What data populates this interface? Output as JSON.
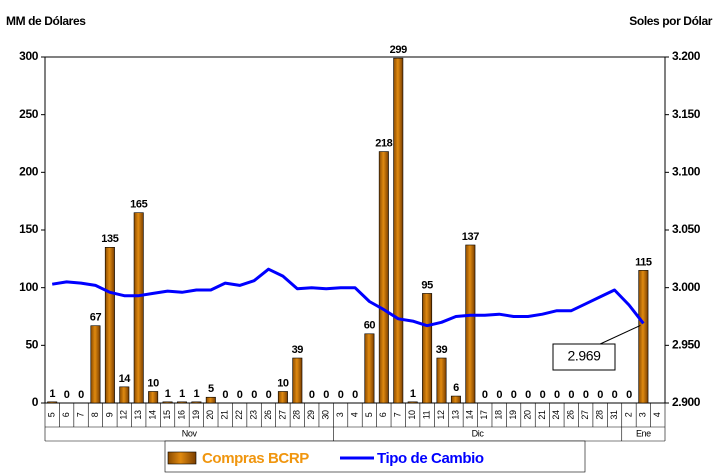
{
  "chart_data": {
    "type": "bar",
    "y_label": "MM de Dólares",
    "y2_label": "Soles por Dólar",
    "categories": [
      "5",
      "6",
      "7",
      "8",
      "9",
      "12",
      "13",
      "14",
      "15",
      "16",
      "19",
      "20",
      "21",
      "22",
      "23",
      "26",
      "27",
      "28",
      "29",
      "30",
      "3",
      "4",
      "5",
      "6",
      "7",
      "10",
      "11",
      "12",
      "13",
      "14",
      "17",
      "18",
      "19",
      "20",
      "21",
      "24",
      "26",
      "27",
      "28",
      "31",
      "2",
      "3",
      "4"
    ],
    "groups": [
      "Nov",
      "Dic",
      "Ene"
    ],
    "series": [
      {
        "name": "Compras BCRP",
        "type": "bar",
        "color": "#e08a10",
        "values": [
          1,
          0,
          0,
          67,
          135,
          14,
          165,
          10,
          1,
          1,
          1,
          5,
          0,
          0,
          0,
          0,
          10,
          39,
          0,
          0,
          0,
          0,
          60,
          218,
          299,
          1,
          95,
          39,
          6,
          137,
          0,
          0,
          0,
          0,
          0,
          0,
          0,
          0,
          0,
          0,
          0,
          115,
          null
        ]
      },
      {
        "name": "Tipo de Cambio",
        "type": "line",
        "axis": "y2",
        "color": "#0000ff",
        "values": [
          3.003,
          3.005,
          3.004,
          3.002,
          2.996,
          2.993,
          2.993,
          2.995,
          2.997,
          2.996,
          2.998,
          2.998,
          3.004,
          3.002,
          3.006,
          3.016,
          3.01,
          2.999,
          3.0,
          2.999,
          3.0,
          3.0,
          2.988,
          2.981,
          2.973,
          2.971,
          2.967,
          2.97,
          2.975,
          2.976,
          2.976,
          2.977,
          2.975,
          2.975,
          2.977,
          2.98,
          2.98,
          2.986,
          2.992,
          2.998,
          2.985,
          2.969,
          null
        ]
      }
    ],
    "annotations": [
      {
        "text": "2.969"
      }
    ],
    "ylim": [
      0,
      300
    ],
    "yticks": [
      0,
      50,
      100,
      150,
      200,
      250,
      300
    ],
    "y2lim": [
      2.9,
      3.2
    ],
    "y2ticks": [
      {
        "value": 2.9,
        "label": "2.900"
      },
      {
        "value": 2.95,
        "label": "2.950"
      },
      {
        "value": 3.0,
        "label": "3.000"
      },
      {
        "value": 3.05,
        "label": "3.050"
      },
      {
        "value": 3.1,
        "label": "3.100"
      },
      {
        "value": 3.15,
        "label": "3.150"
      },
      {
        "value": 3.2,
        "label": "3.200"
      }
    ],
    "legend": "bottom",
    "grid": false
  }
}
